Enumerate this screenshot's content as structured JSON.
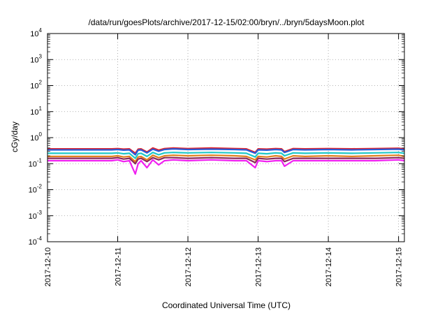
{
  "chart_data": {
    "type": "line",
    "title": "/data/run/goesPlots/archive/2017-12-15/02:00/bryn/../bryn/5daysMoon.plot",
    "xlabel": "Coordinated Universal Time (UTC)",
    "ylabel": "cGy/day",
    "y_scale": "log",
    "ylim": [
      0.0001,
      10000
    ],
    "xlim": [
      "2017-12-10T00:00",
      "2017-12-15T02:00"
    ],
    "grid": true,
    "x_ticks": [
      "2017-12-10",
      "2017-12-11",
      "2017-12-12",
      "2017-12-13",
      "2017-12-14",
      "2017-12-15"
    ],
    "y_ticks": [
      {
        "base": "10",
        "exp": "-4",
        "value": 0.0001
      },
      {
        "base": "10",
        "exp": "-3",
        "value": 0.001
      },
      {
        "base": "10",
        "exp": "-2",
        "value": 0.01
      },
      {
        "base": "10",
        "exp": "-1",
        "value": 0.1
      },
      {
        "base": "10",
        "exp": "0",
        "value": 1
      },
      {
        "base": "10",
        "exp": "1",
        "value": 10
      },
      {
        "base": "10",
        "exp": "2",
        "value": 100
      },
      {
        "base": "10",
        "exp": "3",
        "value": 1000
      },
      {
        "base": "10",
        "exp": "4",
        "value": 10000
      }
    ],
    "x": [
      "2017-12-10T00:00",
      "2017-12-10T22:00",
      "2017-12-11T00:00",
      "2017-12-11T02:00",
      "2017-12-11T04:00",
      "2017-12-11T06:00",
      "2017-12-11T07:00",
      "2017-12-11T08:00",
      "2017-12-11T10:00",
      "2017-12-11T12:00",
      "2017-12-11T14:00",
      "2017-12-11T16:00",
      "2017-12-11T19:00",
      "2017-12-12T00:00",
      "2017-12-12T08:00",
      "2017-12-12T16:00",
      "2017-12-12T20:00",
      "2017-12-12T23:00",
      "2017-12-13T00:00",
      "2017-12-13T03:00",
      "2017-12-13T06:00",
      "2017-12-13T08:00",
      "2017-12-13T09:00",
      "2017-12-13T12:00",
      "2017-12-13T16:00",
      "2017-12-14T00:00",
      "2017-12-14T08:00",
      "2017-12-14T16:00",
      "2017-12-15T00:00",
      "2017-12-15T02:00"
    ],
    "series": [
      {
        "color": "#e0202a",
        "values": [
          0.37,
          0.37,
          0.38,
          0.36,
          0.37,
          0.25,
          0.36,
          0.37,
          0.28,
          0.4,
          0.33,
          0.38,
          0.4,
          0.38,
          0.4,
          0.38,
          0.37,
          0.27,
          0.37,
          0.36,
          0.38,
          0.37,
          0.29,
          0.38,
          0.37,
          0.38,
          0.37,
          0.38,
          0.39,
          0.37
        ]
      },
      {
        "color": "#2a5ad8",
        "values": [
          0.34,
          0.34,
          0.35,
          0.33,
          0.34,
          0.22,
          0.33,
          0.34,
          0.26,
          0.36,
          0.3,
          0.35,
          0.37,
          0.35,
          0.36,
          0.35,
          0.34,
          0.25,
          0.34,
          0.33,
          0.35,
          0.34,
          0.27,
          0.35,
          0.34,
          0.35,
          0.34,
          0.35,
          0.36,
          0.34
        ]
      },
      {
        "color": "#1fc8c8",
        "values": [
          0.25,
          0.25,
          0.26,
          0.24,
          0.25,
          0.16,
          0.24,
          0.25,
          0.19,
          0.27,
          0.22,
          0.26,
          0.27,
          0.26,
          0.27,
          0.26,
          0.25,
          0.18,
          0.25,
          0.24,
          0.26,
          0.25,
          0.2,
          0.26,
          0.25,
          0.26,
          0.25,
          0.26,
          0.27,
          0.25
        ]
      },
      {
        "color": "#e08020",
        "values": [
          0.19,
          0.19,
          0.2,
          0.18,
          0.19,
          0.12,
          0.18,
          0.19,
          0.14,
          0.21,
          0.17,
          0.2,
          0.21,
          0.2,
          0.21,
          0.2,
          0.19,
          0.14,
          0.19,
          0.18,
          0.2,
          0.19,
          0.15,
          0.2,
          0.19,
          0.2,
          0.19,
          0.2,
          0.21,
          0.19
        ]
      },
      {
        "color": "#8a2a5a",
        "values": [
          0.16,
          0.16,
          0.17,
          0.15,
          0.16,
          0.1,
          0.15,
          0.16,
          0.12,
          0.17,
          0.14,
          0.17,
          0.17,
          0.16,
          0.17,
          0.16,
          0.16,
          0.11,
          0.16,
          0.15,
          0.16,
          0.16,
          0.12,
          0.16,
          0.16,
          0.16,
          0.16,
          0.16,
          0.17,
          0.16
        ]
      },
      {
        "color": "#f020f0",
        "values": [
          0.13,
          0.13,
          0.14,
          0.12,
          0.13,
          0.04,
          0.1,
          0.13,
          0.07,
          0.14,
          0.09,
          0.13,
          0.14,
          0.13,
          0.14,
          0.13,
          0.13,
          0.07,
          0.13,
          0.12,
          0.13,
          0.13,
          0.08,
          0.13,
          0.13,
          0.13,
          0.13,
          0.13,
          0.14,
          0.13
        ]
      }
    ]
  }
}
